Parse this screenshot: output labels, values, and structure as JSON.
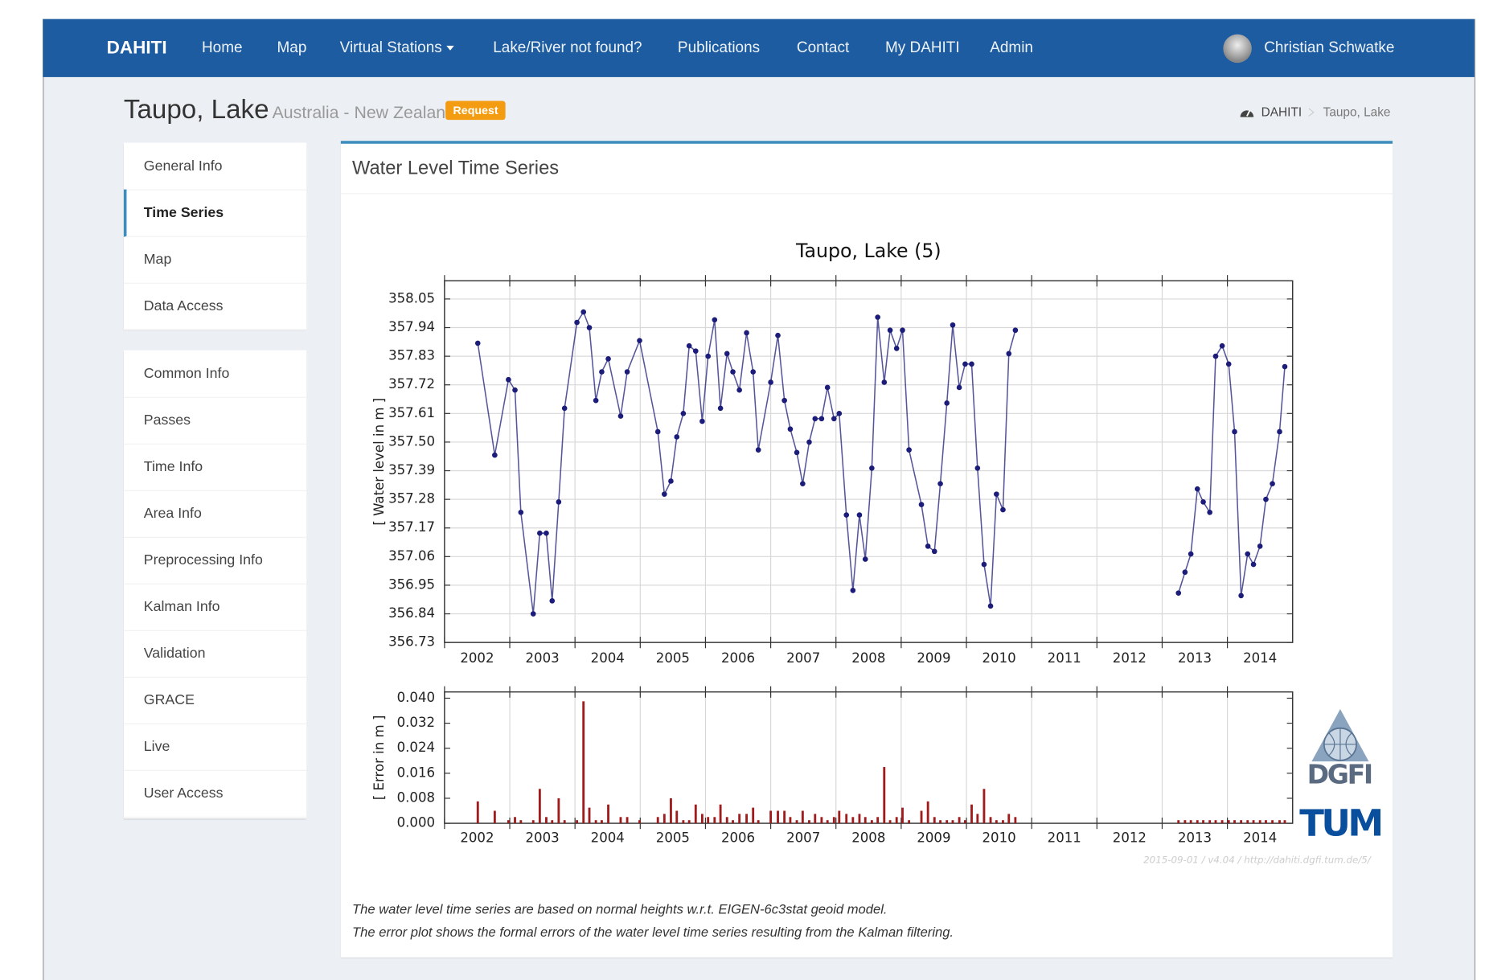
{
  "navbar": {
    "brand": "DAHITI",
    "items": [
      "Home",
      "Map",
      "Virtual Stations",
      "Lake/River not found?",
      "Publications",
      "Contact",
      "My DAHITI",
      "Admin"
    ],
    "user": "Christian Schwatke"
  },
  "header": {
    "title": "Taupo, Lake",
    "subtitle": "Australia - New Zealand",
    "badge": "Request",
    "breadcrumb": [
      "DAHITI",
      "Taupo, Lake"
    ]
  },
  "sidebar": {
    "groups": [
      [
        "General Info",
        "Time Series",
        "Map",
        "Data Access"
      ],
      [
        "Common Info",
        "Passes",
        "Time Info",
        "Area Info",
        "Preprocessing Info",
        "Kalman Info",
        "Validation",
        "GRACE",
        "Live",
        "User Access"
      ]
    ]
  },
  "panel": {
    "title": "Water Level Time Series",
    "notes": [
      "The water level time series are based on normal heights w.r.t. EIGEN-6c3stat geoid model.",
      "The error plot shows the formal errors of the water level time series resulting from the Kalman filtering."
    ]
  },
  "chart_data": [
    {
      "type": "line",
      "title": "Taupo, Lake (5)",
      "y_label": "[ Water level in m ]",
      "color": "#1c1c7a",
      "grid": true,
      "xlim": [
        2002,
        2015
      ],
      "xticks": [
        2002,
        2003,
        2004,
        2005,
        2006,
        2007,
        2008,
        2009,
        2010,
        2011,
        2012,
        2013,
        2014
      ],
      "ylim": [
        356.73,
        358.12
      ],
      "yticks": [
        356.73,
        356.84,
        356.95,
        357.06,
        357.17,
        357.28,
        357.39,
        {
          "value": 357.5,
          "label": "357.50"
        },
        357.61,
        357.72,
        357.83,
        357.94,
        358.05
      ],
      "x": [
        2002.51,
        2002.77,
        2002.98,
        2003.08,
        2003.17,
        2003.36,
        2003.46,
        2003.56,
        2003.65,
        2003.75,
        2003.84,
        2004.03,
        2004.13,
        2004.22,
        2004.32,
        2004.41,
        2004.51,
        2004.7,
        2004.8,
        2004.99,
        2005.27,
        2005.37,
        2005.47,
        2005.56,
        2005.66,
        2005.75,
        2005.85,
        2005.95,
        2006.04,
        2006.14,
        2006.23,
        2006.33,
        2006.42,
        2006.52,
        2006.63,
        2006.73,
        2006.81,
        2007.0,
        2007.11,
        2007.21,
        2007.3,
        2007.4,
        2007.49,
        2007.59,
        2007.68,
        2007.78,
        2007.87,
        2007.97,
        2008.05,
        2008.16,
        2008.26,
        2008.36,
        2008.45,
        2008.55,
        2008.64,
        2008.74,
        2008.83,
        2008.93,
        2009.02,
        2009.12,
        2009.31,
        2009.41,
        2009.51,
        2009.6,
        2009.7,
        2009.79,
        2009.89,
        2009.98,
        2010.08,
        2010.17,
        2010.27,
        2010.37,
        2010.46,
        2010.56,
        2010.65,
        2010.75,
        null,
        2013.25,
        2013.35,
        2013.44,
        2013.54,
        2013.63,
        2013.73,
        2013.82,
        2013.92,
        2014.02,
        2014.11,
        2014.21,
        2014.31,
        2014.4,
        2014.5,
        2014.59,
        2014.69,
        2014.8,
        2014.88
      ],
      "values": [
        357.88,
        357.45,
        357.74,
        357.7,
        357.23,
        356.84,
        357.15,
        357.15,
        356.89,
        357.27,
        357.63,
        357.96,
        358.0,
        357.94,
        357.66,
        357.77,
        357.82,
        357.6,
        357.77,
        357.89,
        357.54,
        357.3,
        357.35,
        357.52,
        357.61,
        357.87,
        357.85,
        357.58,
        357.83,
        357.97,
        357.63,
        357.84,
        357.77,
        357.7,
        357.92,
        357.77,
        357.47,
        357.73,
        357.91,
        357.66,
        357.55,
        357.46,
        357.34,
        357.5,
        357.59,
        357.59,
        357.71,
        357.59,
        357.61,
        357.22,
        356.93,
        357.22,
        357.05,
        357.4,
        357.98,
        357.73,
        357.93,
        357.86,
        357.93,
        357.47,
        357.26,
        357.1,
        357.08,
        357.34,
        357.65,
        357.95,
        357.71,
        357.8,
        357.8,
        357.4,
        357.03,
        356.87,
        357.3,
        357.24,
        357.84,
        357.93,
        null,
        356.92,
        357.0,
        357.07,
        357.32,
        357.27,
        357.23,
        357.83,
        357.87,
        357.8,
        357.54,
        356.91,
        357.07,
        357.03,
        357.1,
        357.28,
        357.34,
        357.54,
        357.79
      ]
    },
    {
      "type": "bar",
      "y_label": "[ Error in m ]",
      "color": "#a01c1c",
      "grid": "x",
      "xlim": [
        2002,
        2015
      ],
      "xticks": [
        2002,
        2003,
        2004,
        2005,
        2006,
        2007,
        2008,
        2009,
        2010,
        2011,
        2012,
        2013,
        2014
      ],
      "ylim": [
        0,
        0.042
      ],
      "yticks": [
        {
          "value": 0,
          "label": "0.000"
        },
        0.008,
        0.016,
        0.024,
        0.032,
        {
          "value": 0.04,
          "label": "0.040"
        }
      ],
      "x": [
        2002.51,
        2002.77,
        2002.98,
        2003.08,
        2003.17,
        2003.36,
        2003.46,
        2003.56,
        2003.65,
        2003.75,
        2003.84,
        2004.03,
        2004.13,
        2004.22,
        2004.32,
        2004.41,
        2004.51,
        2004.7,
        2004.8,
        2004.99,
        2005.27,
        2005.37,
        2005.47,
        2005.56,
        2005.66,
        2005.75,
        2005.85,
        2005.95,
        2006.04,
        2006.14,
        2006.23,
        2006.33,
        2006.42,
        2006.52,
        2006.63,
        2006.73,
        2006.81,
        2007.0,
        2007.11,
        2007.21,
        2007.3,
        2007.4,
        2007.49,
        2007.59,
        2007.68,
        2007.78,
        2007.87,
        2007.97,
        2008.05,
        2008.16,
        2008.26,
        2008.36,
        2008.45,
        2008.55,
        2008.64,
        2008.74,
        2008.83,
        2008.93,
        2009.02,
        2009.12,
        2009.31,
        2009.41,
        2009.51,
        2009.6,
        2009.7,
        2009.79,
        2009.89,
        2009.98,
        2010.08,
        2010.17,
        2010.27,
        2010.37,
        2010.46,
        2010.56,
        2010.65,
        2010.75,
        2013.25,
        2013.35,
        2013.44,
        2013.54,
        2013.63,
        2013.73,
        2013.82,
        2013.92,
        2014.02,
        2014.11,
        2014.21,
        2014.31,
        2014.4,
        2014.5,
        2014.59,
        2014.69,
        2014.8,
        2014.88
      ],
      "values": [
        0.007,
        0.004,
        0.001,
        0.002,
        0.001,
        0.001,
        0.011,
        0.002,
        0.001,
        0.008,
        0.001,
        0.001,
        0.039,
        0.005,
        0.001,
        0.001,
        0.006,
        0.002,
        0.002,
        0.001,
        0.002,
        0.003,
        0.008,
        0.004,
        0.001,
        0.001,
        0.006,
        0.003,
        0.002,
        0.002,
        0.006,
        0.002,
        0.001,
        0.003,
        0.003,
        0.005,
        0.001,
        0.004,
        0.004,
        0.004,
        0.002,
        0.001,
        0.004,
        0.001,
        0.003,
        0.002,
        0.001,
        0.002,
        0.004,
        0.003,
        0.002,
        0.003,
        0.002,
        0.001,
        0.002,
        0.018,
        0.001,
        0.002,
        0.005,
        0.001,
        0.004,
        0.007,
        0.002,
        0.001,
        0.001,
        0.001,
        0.002,
        0.001,
        0.006,
        0.003,
        0.011,
        0.002,
        0.001,
        0.001,
        0.003,
        0.002,
        0.001,
        0.001,
        0.001,
        0.001,
        0.001,
        0.001,
        0.001,
        0.001,
        0.001,
        0.001,
        0.001,
        0.001,
        0.001,
        0.001,
        0.001,
        0.001,
        0.001,
        0.001
      ]
    }
  ],
  "credits": {
    "stamp": "2015-09-01 / v4.04 / http://dahiti.dgfi.tum.de/5/",
    "logos": [
      "DGFI",
      "TUM"
    ]
  }
}
